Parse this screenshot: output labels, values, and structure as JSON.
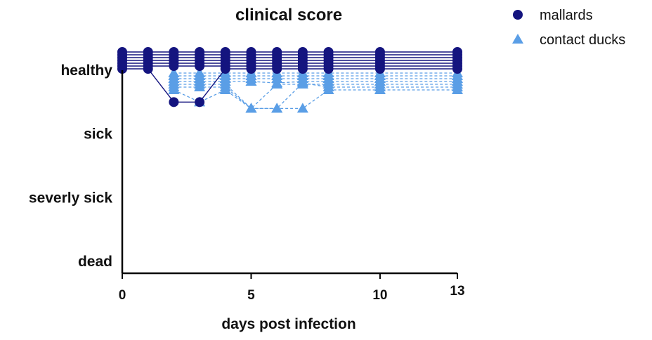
{
  "chart_data": {
    "type": "line",
    "title": "clinical score",
    "xlabel": "days post infection",
    "ylabel": "",
    "x_ticks": [
      0,
      5,
      10,
      13
    ],
    "xlim": [
      0,
      13
    ],
    "y_categories": [
      "healthy",
      "sick",
      "severly sick",
      "dead"
    ],
    "y_values": [
      0,
      1,
      2,
      3
    ],
    "ylim": [
      0,
      3
    ],
    "legend_position": "top-right",
    "series": [
      {
        "name": "mallards",
        "marker": "circle",
        "color": "#14147f",
        "line_style": "solid",
        "x": [
          0,
          1,
          2,
          3,
          4,
          5,
          6,
          7,
          8,
          10,
          13
        ],
        "individuals": [
          [
            0,
            0,
            0,
            0,
            0,
            0,
            0,
            0,
            0,
            0,
            0
          ],
          [
            0,
            0,
            0,
            0,
            0,
            0,
            0,
            0,
            0,
            0,
            0
          ],
          [
            0,
            0,
            0,
            0,
            0,
            0,
            0,
            0,
            0,
            0,
            0
          ],
          [
            0,
            0,
            0,
            0,
            0,
            0,
            0,
            0,
            0,
            0,
            0
          ],
          [
            0,
            0,
            0,
            0,
            0,
            0,
            0,
            0,
            0,
            0,
            0
          ],
          [
            0,
            0,
            0,
            0,
            0,
            0,
            0,
            0,
            0,
            0,
            0
          ],
          [
            0,
            0,
            0.5,
            0.5,
            0,
            0,
            0,
            0,
            0,
            0,
            0
          ]
        ]
      },
      {
        "name": "contact ducks",
        "marker": "triangle",
        "color": "#5a9ee6",
        "line_style": "dashed",
        "x": [
          2,
          3,
          4,
          5,
          6,
          7,
          8,
          10,
          13
        ],
        "individuals": [
          [
            0,
            0,
            0,
            0,
            0,
            0,
            0,
            0,
            0
          ],
          [
            0,
            0,
            0,
            0,
            0,
            0,
            0,
            0,
            0
          ],
          [
            0,
            0,
            0,
            0,
            0,
            0,
            0,
            0,
            0
          ],
          [
            0,
            0,
            0,
            0,
            0.2,
            0,
            0,
            0,
            0
          ],
          [
            0,
            0,
            0,
            0.6,
            0,
            0,
            0,
            0,
            0
          ],
          [
            0,
            0,
            0,
            0.6,
            0.6,
            0.2,
            0,
            0,
            0
          ],
          [
            0,
            0.5,
            0,
            0.6,
            0.6,
            0.6,
            0,
            0,
            0
          ]
        ]
      }
    ]
  }
}
